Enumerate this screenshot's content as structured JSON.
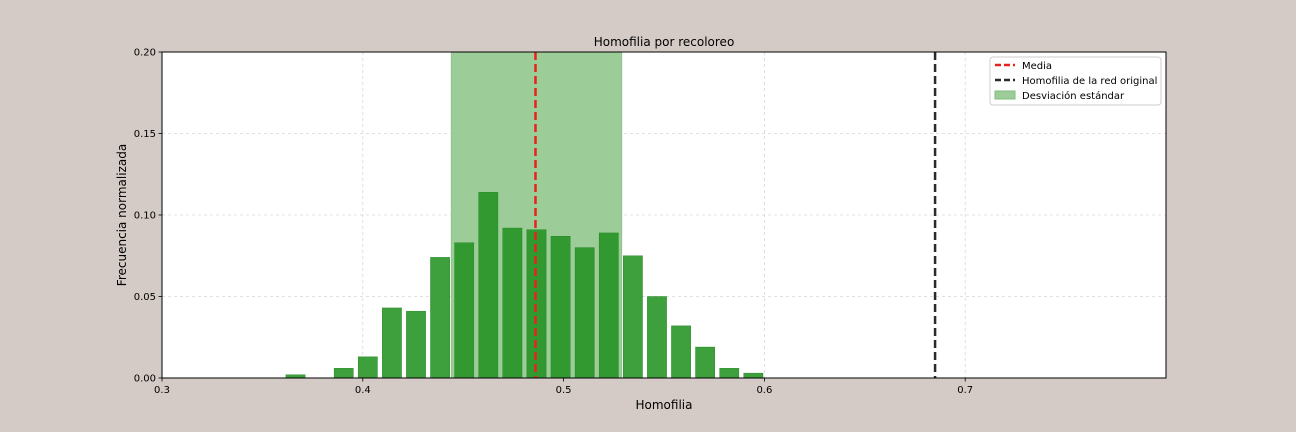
{
  "chart_data": {
    "type": "bar",
    "title": "Homofilia por recoloreo",
    "xlabel": "Homofilia",
    "ylabel": "Frecuencia normalizada",
    "xlim": [
      0.3,
      0.8
    ],
    "ylim": [
      0,
      0.2
    ],
    "xticks": [
      "0.3",
      "0.4",
      "0.5",
      "0.6",
      "0.7"
    ],
    "yticks": [
      "0.00",
      "0.05",
      "0.10",
      "0.15",
      "0.20"
    ],
    "grid": true,
    "legend_position": "top-right",
    "bar_width": 0.0096,
    "bars": [
      {
        "x": 0.3665,
        "value": 0.002
      },
      {
        "x": 0.3905,
        "value": 0.006
      },
      {
        "x": 0.4025,
        "value": 0.013
      },
      {
        "x": 0.4145,
        "value": 0.043
      },
      {
        "x": 0.4265,
        "value": 0.041
      },
      {
        "x": 0.4385,
        "value": 0.074
      },
      {
        "x": 0.4505,
        "value": 0.083
      },
      {
        "x": 0.4625,
        "value": 0.114
      },
      {
        "x": 0.4745,
        "value": 0.092
      },
      {
        "x": 0.4865,
        "value": 0.091
      },
      {
        "x": 0.4985,
        "value": 0.087
      },
      {
        "x": 0.5105,
        "value": 0.08
      },
      {
        "x": 0.5225,
        "value": 0.089
      },
      {
        "x": 0.5345,
        "value": 0.075
      },
      {
        "x": 0.5465,
        "value": 0.05
      },
      {
        "x": 0.5585,
        "value": 0.032
      },
      {
        "x": 0.5705,
        "value": 0.019
      },
      {
        "x": 0.5825,
        "value": 0.006
      },
      {
        "x": 0.5945,
        "value": 0.003
      }
    ],
    "mean": 0.486,
    "std_band": [
      0.444,
      0.529
    ],
    "original_homophily": 0.685,
    "legend": {
      "mean_label": "Media",
      "original_label": "Homofilia de la red original",
      "std_label": "Desviación estándar"
    },
    "colors": {
      "bar": "#239222",
      "bar_edge": "#1e7f1e",
      "band": "#9ccd98",
      "mean_line": "#e8241a",
      "original_line": "#2a2a2a"
    }
  }
}
